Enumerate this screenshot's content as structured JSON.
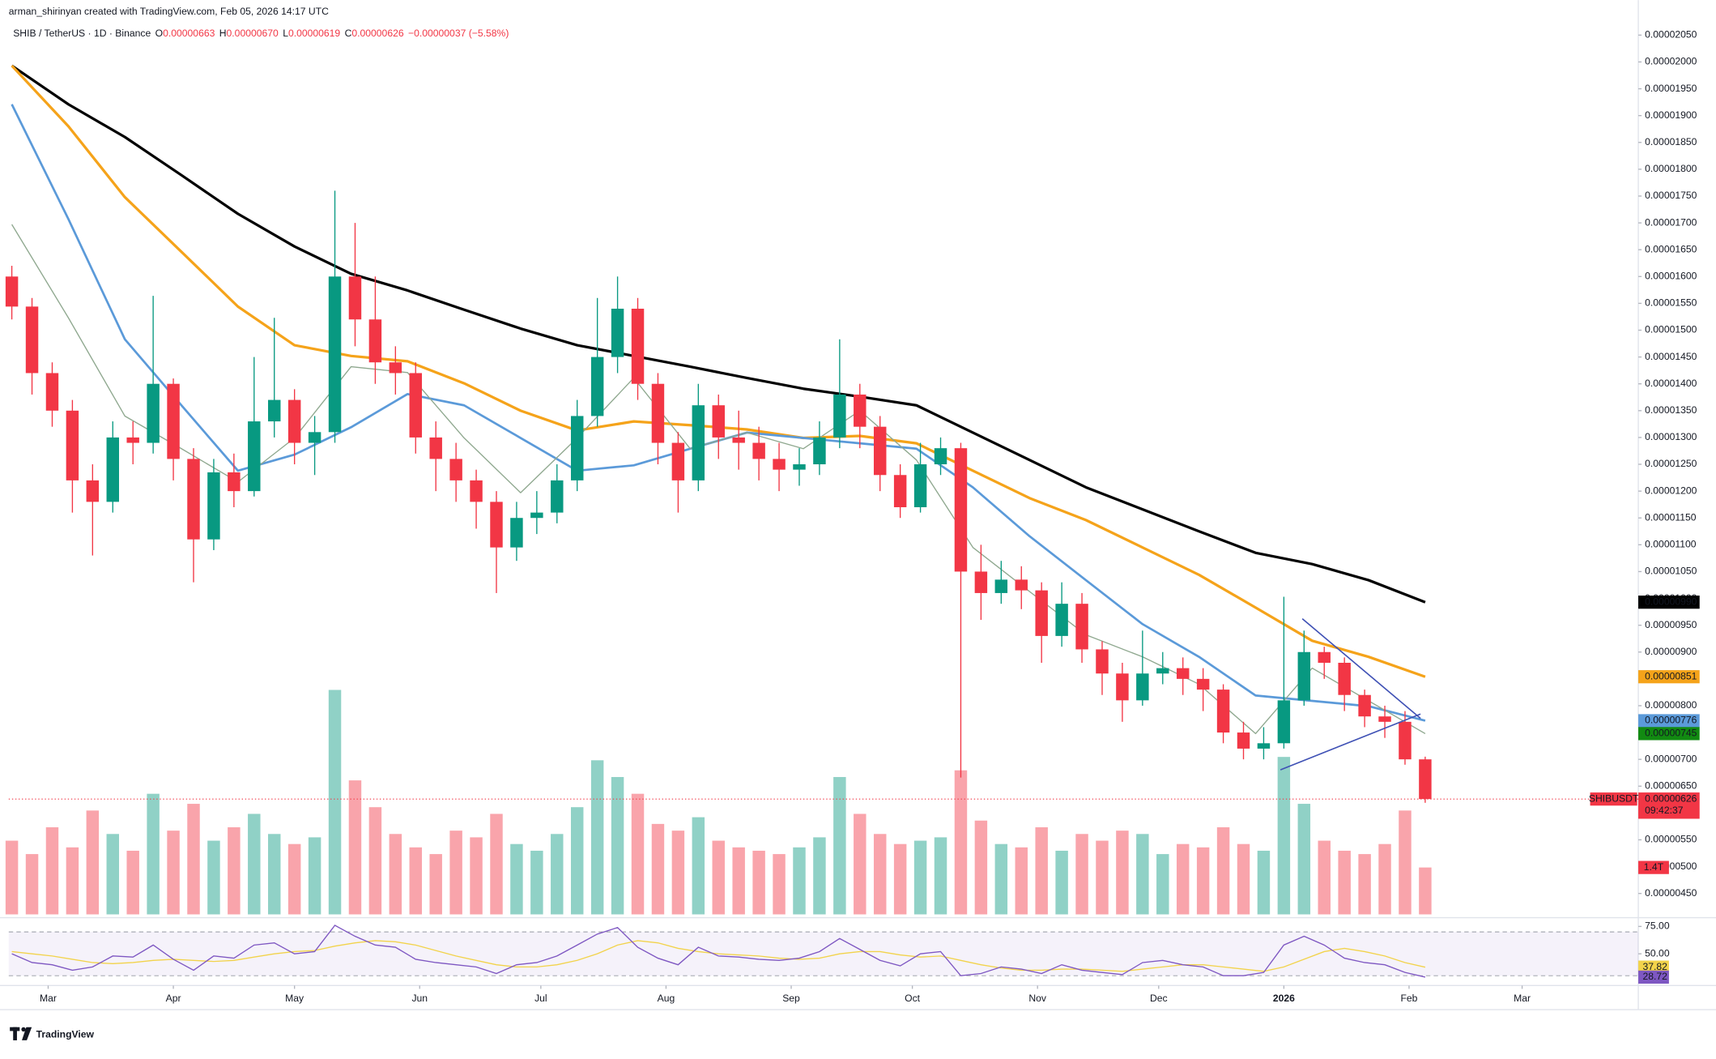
{
  "header": {
    "author": "arman_shirinyan created with TradingView.com, Feb 05, 2026 14:17 UTC",
    "symbol": "SHIB / TetherUS · 1D · Binance",
    "ohlc": [
      {
        "key": "O",
        "value": "0.00000663"
      },
      {
        "key": "H",
        "value": "0.00000670"
      },
      {
        "key": "L",
        "value": "0.00000619"
      },
      {
        "key": "C",
        "value": "0.00000626"
      }
    ],
    "change": "−0.00000037 (−5.58%)"
  },
  "chart_data": {
    "type": "candlestick",
    "x": [
      -9,
      -4,
      1,
      6,
      11,
      16,
      21,
      26,
      31,
      36,
      41,
      46,
      51,
      56,
      61,
      66,
      71,
      76,
      81,
      86,
      91,
      96,
      101,
      106,
      111,
      116,
      121,
      126,
      131,
      136,
      141,
      146,
      151,
      156,
      161,
      166,
      171,
      176,
      181,
      186,
      191,
      196,
      201,
      206,
      211,
      216,
      221,
      226,
      231,
      236,
      241,
      246,
      251,
      256,
      261,
      266,
      271,
      276,
      281,
      286,
      291,
      296,
      301,
      306,
      311,
      316,
      321,
      326,
      331,
      336,
      341
    ],
    "open": [
      1.6e-05,
      1.544e-05,
      1.42e-05,
      1.35e-05,
      1.22e-05,
      1.18e-05,
      1.3e-05,
      1.29e-05,
      1.4e-05,
      1.26e-05,
      1.11e-05,
      1.235e-05,
      1.2e-05,
      1.33e-05,
      1.37e-05,
      1.29e-05,
      1.31e-05,
      1.6e-05,
      1.52e-05,
      1.44e-05,
      1.42e-05,
      1.3e-05,
      1.26e-05,
      1.22e-05,
      1.18e-05,
      1.095e-05,
      1.15e-05,
      1.16e-05,
      1.22e-05,
      1.34e-05,
      1.45e-05,
      1.54e-05,
      1.4e-05,
      1.29e-05,
      1.22e-05,
      1.36e-05,
      1.3e-05,
      1.29e-05,
      1.26e-05,
      1.24e-05,
      1.25e-05,
      1.3e-05,
      1.38e-05,
      1.32e-05,
      1.23e-05,
      1.17e-05,
      1.25e-05,
      1.28e-05,
      1.05e-05,
      1.01e-05,
      1.035e-05,
      1.015e-05,
      9.3e-06,
      9.9e-06,
      9.05e-06,
      8.6e-06,
      8.1e-06,
      8.6e-06,
      8.7e-06,
      8.5e-06,
      8.3e-06,
      7.5e-06,
      7.2e-06,
      7.3e-06,
      8.1e-06,
      9e-06,
      8.8e-06,
      8.2e-06,
      7.8e-06,
      7.7e-06,
      7e-06
    ],
    "high": [
      1.62e-05,
      1.56e-05,
      1.44e-05,
      1.37e-05,
      1.25e-05,
      1.33e-05,
      1.33e-05,
      1.564e-05,
      1.41e-05,
      1.28e-05,
      1.26e-05,
      1.27e-05,
      1.45e-05,
      1.523e-05,
      1.39e-05,
      1.34e-05,
      1.76e-05,
      1.7e-05,
      1.6e-05,
      1.47e-05,
      1.44e-05,
      1.33e-05,
      1.29e-05,
      1.24e-05,
      1.2e-05,
      1.18e-05,
      1.2e-05,
      1.25e-05,
      1.37e-05,
      1.56e-05,
      1.6e-05,
      1.56e-05,
      1.42e-05,
      1.31e-05,
      1.4e-05,
      1.38e-05,
      1.35e-05,
      1.32e-05,
      1.29e-05,
      1.28e-05,
      1.33e-05,
      1.483e-05,
      1.4e-05,
      1.34e-05,
      1.25e-05,
      1.29e-05,
      1.3e-05,
      1.29e-05,
      1.1e-05,
      1.07e-05,
      1.06e-05,
      1.03e-05,
      1.03e-05,
      1.01e-05,
      9.2e-06,
      8.8e-06,
      9.4e-06,
      9e-06,
      8.9e-06,
      8.7e-06,
      8.4e-06,
      7.7e-06,
      7.6e-06,
      1.003e-05,
      9.4e-06,
      9.1e-06,
      8.9e-06,
      8.3e-06,
      8e-06,
      7.9e-06,
      7.05e-06
    ],
    "low": [
      1.52e-05,
      1.38e-05,
      1.32e-05,
      1.16e-05,
      1.08e-05,
      1.16e-05,
      1.25e-05,
      1.27e-05,
      1.22e-05,
      1.03e-05,
      1.09e-05,
      1.17e-05,
      1.19e-05,
      1.3e-05,
      1.25e-05,
      1.23e-05,
      1.29e-05,
      1.47e-05,
      1.4e-05,
      1.38e-05,
      1.27e-05,
      1.2e-05,
      1.18e-05,
      1.13e-05,
      1.01e-05,
      1.07e-05,
      1.12e-05,
      1.14e-05,
      1.2e-05,
      1.32e-05,
      1.42e-05,
      1.37e-05,
      1.25e-05,
      1.16e-05,
      1.2e-05,
      1.26e-05,
      1.24e-05,
      1.22e-05,
      1.2e-05,
      1.21e-05,
      1.23e-05,
      1.28e-05,
      1.28e-05,
      1.2e-05,
      1.15e-05,
      1.16e-05,
      1.23e-05,
      6.66e-06,
      9.6e-06,
      9.9e-06,
      9.8e-06,
      8.8e-06,
      9.1e-06,
      8.8e-06,
      8.2e-06,
      7.7e-06,
      8e-06,
      8.4e-06,
      8.2e-06,
      7.9e-06,
      7.3e-06,
      7e-06,
      7e-06,
      7.2e-06,
      8e-06,
      8.5e-06,
      7.9e-06,
      7.6e-06,
      7.4e-06,
      6.9e-06,
      6.19e-06
    ],
    "close": [
      1.544e-05,
      1.42e-05,
      1.35e-05,
      1.22e-05,
      1.18e-05,
      1.3e-05,
      1.29e-05,
      1.4e-05,
      1.26e-05,
      1.11e-05,
      1.235e-05,
      1.2e-05,
      1.33e-05,
      1.37e-05,
      1.29e-05,
      1.31e-05,
      1.6e-05,
      1.52e-05,
      1.44e-05,
      1.42e-05,
      1.3e-05,
      1.26e-05,
      1.22e-05,
      1.18e-05,
      1.095e-05,
      1.15e-05,
      1.16e-05,
      1.22e-05,
      1.34e-05,
      1.45e-05,
      1.54e-05,
      1.4e-05,
      1.29e-05,
      1.22e-05,
      1.36e-05,
      1.3e-05,
      1.29e-05,
      1.26e-05,
      1.24e-05,
      1.25e-05,
      1.3e-05,
      1.38e-05,
      1.32e-05,
      1.23e-05,
      1.17e-05,
      1.25e-05,
      1.28e-05,
      1.05e-05,
      1.01e-05,
      1.035e-05,
      1.015e-05,
      9.3e-06,
      9.9e-06,
      9.05e-06,
      8.6e-06,
      8.1e-06,
      8.6e-06,
      8.7e-06,
      8.5e-06,
      8.3e-06,
      7.5e-06,
      7.2e-06,
      7.3e-06,
      8.1e-06,
      9e-06,
      8.8e-06,
      8.2e-06,
      7.8e-06,
      7.7e-06,
      7e-06,
      6.26e-06
    ],
    "colors": {
      "up": "#089981",
      "down": "#f23645"
    },
    "xlim": [
      -9.76,
      393.77
    ],
    "xticks": [
      {
        "value": 0,
        "label": "Mar"
      },
      {
        "value": 31,
        "label": "Apr"
      },
      {
        "value": 61,
        "label": "May"
      },
      {
        "value": 92,
        "label": "Jun"
      },
      {
        "value": 122,
        "label": "Jul"
      },
      {
        "value": 153,
        "label": "Aug"
      },
      {
        "value": 184,
        "label": "Sep"
      },
      {
        "value": 214,
        "label": "Oct"
      },
      {
        "value": 245,
        "label": "Nov"
      },
      {
        "value": 275,
        "label": "Dec"
      },
      {
        "value": 306,
        "label": "2026",
        "bold": true
      },
      {
        "value": 337,
        "label": "Feb"
      },
      {
        "value": 365,
        "label": "Mar"
      }
    ],
    "ylim": [
      4.11e-06,
      2.0745e-05
    ],
    "yticks": [
      {
        "value": 2.05e-05,
        "label": "0.00002050"
      },
      {
        "value": 2e-05,
        "label": "0.00002000"
      },
      {
        "value": 1.95e-05,
        "label": "0.00001950"
      },
      {
        "value": 1.9e-05,
        "label": "0.00001900"
      },
      {
        "value": 1.85e-05,
        "label": "0.00001850"
      },
      {
        "value": 1.8e-05,
        "label": "0.00001800"
      },
      {
        "value": 1.75e-05,
        "label": "0.00001750"
      },
      {
        "value": 1.7e-05,
        "label": "0.00001700"
      },
      {
        "value": 1.65e-05,
        "label": "0.00001650"
      },
      {
        "value": 1.6e-05,
        "label": "0.00001600"
      },
      {
        "value": 1.55e-05,
        "label": "0.00001550"
      },
      {
        "value": 1.5e-05,
        "label": "0.00001500"
      },
      {
        "value": 1.45e-05,
        "label": "0.00001450"
      },
      {
        "value": 1.4e-05,
        "label": "0.00001400"
      },
      {
        "value": 1.35e-05,
        "label": "0.00001350"
      },
      {
        "value": 1.3e-05,
        "label": "0.00001300"
      },
      {
        "value": 1.25e-05,
        "label": "0.00001250"
      },
      {
        "value": 1.2e-05,
        "label": "0.00001200"
      },
      {
        "value": 1.15e-05,
        "label": "0.00001150"
      },
      {
        "value": 1.1e-05,
        "label": "0.00001100"
      },
      {
        "value": 1.05e-05,
        "label": "0.00001050"
      },
      {
        "value": 1e-05,
        "label": "0.00001000"
      },
      {
        "value": 9.5e-06,
        "label": "0.00000950"
      },
      {
        "value": 9e-06,
        "label": "0.00000900"
      },
      {
        "value": 8.5e-06,
        "label": "0.00000850"
      },
      {
        "value": 8e-06,
        "label": "0.00000800"
      },
      {
        "value": 7.5e-06,
        "label": "0.00000750"
      },
      {
        "value": 7e-06,
        "label": "0.00000700"
      },
      {
        "value": 6.5e-06,
        "label": "0.00000650"
      },
      {
        "value": 6e-06,
        "label": "0.00000600"
      },
      {
        "value": 5.5e-06,
        "label": "0.00000550"
      },
      {
        "value": 5e-06,
        "label": "0.00000500"
      },
      {
        "value": 4.5e-06,
        "label": "0.00000450"
      }
    ],
    "last_price": {
      "symbol": "SHIBUSDT",
      "label": "0.00000626",
      "countdown": "09:42:37"
    },
    "moving_averages": {
      "x": [
        -9,
        5,
        19,
        33,
        47,
        61,
        75,
        89,
        103,
        117,
        131,
        145,
        159,
        173,
        187,
        201,
        215,
        229,
        243,
        257,
        271,
        285,
        299,
        313,
        327,
        341
      ],
      "series": [
        {
          "color": "#000000",
          "label_color": "#000000",
          "label_text_color": "#ffffff",
          "width": 2.4,
          "last_label": "0.00000990",
          "values": [
            1.993e-05,
            1.921e-05,
            1.86e-05,
            1.789e-05,
            1.717e-05,
            1.656e-05,
            1.605e-05,
            1.574e-05,
            1.538e-05,
            1.503e-05,
            1.472e-05,
            1.452e-05,
            1.432e-05,
            1.411e-05,
            1.391e-05,
            1.376e-05,
            1.36e-05,
            1.309e-05,
            1.258e-05,
            1.207e-05,
            1.166e-05,
            1.125e-05,
            1.085e-05,
            1.064e-05,
            1.034e-05,
            9.93e-06
          ]
        },
        {
          "color": "#f5a31a",
          "label_color": "#f5a31a",
          "label_text_color": "#131722",
          "width": 2.4,
          "last_label": "0.00000851",
          "values": [
            1.993e-05,
            1.88e-05,
            1.748e-05,
            1.646e-05,
            1.544e-05,
            1.472e-05,
            1.452e-05,
            1.442e-05,
            1.401e-05,
            1.35e-05,
            1.313e-05,
            1.33e-05,
            1.323e-05,
            1.315e-05,
            1.299e-05,
            1.303e-05,
            1.289e-05,
            1.238e-05,
            1.187e-05,
            1.146e-05,
            1.095e-05,
            1.044e-05,
            9.83e-06,
            9.21e-06,
            8.91e-06,
            8.54e-06
          ]
        },
        {
          "color": "#5b9ad9",
          "label_color": "#5b9ad9",
          "label_text_color": "#ffffff",
          "width": 2,
          "last_label": "0.00000776",
          "values": [
            1.921e-05,
            1.707e-05,
            1.483e-05,
            1.36e-05,
            1.238e-05,
            1.268e-05,
            1.319e-05,
            1.381e-05,
            1.36e-05,
            1.299e-05,
            1.238e-05,
            1.248e-05,
            1.279e-05,
            1.309e-05,
            1.299e-05,
            1.289e-05,
            1.279e-05,
            1.207e-05,
            1.116e-05,
            1.034e-05,
            9.52e-06,
            8.91e-06,
            8.19e-06,
            8.09e-06,
            7.99e-06,
            7.72e-06
          ]
        },
        {
          "color": "#8fa88f",
          "label_color": "#118a11",
          "label_text_color": "#ffffff",
          "width": 1,
          "last_label": "0.00000745",
          "values": [
            1.697e-05,
            1.523e-05,
            1.34e-05,
            1.279e-05,
            1.217e-05,
            1.299e-05,
            1.432e-05,
            1.421e-05,
            1.299e-05,
            1.197e-05,
            1.299e-05,
            1.411e-05,
            1.279e-05,
            1.309e-05,
            1.279e-05,
            1.35e-05,
            1.258e-05,
            1.095e-05,
            1.013e-05,
            9.32e-06,
            8.91e-06,
            8.4e-06,
            7.48e-06,
            8.7e-06,
            8.09e-06,
            7.48e-06
          ]
        }
      ]
    },
    "volume": {
      "values": [
        2.2,
        1.8,
        2.6,
        2.0,
        3.1,
        2.4,
        1.9,
        3.6,
        2.5,
        3.3,
        2.2,
        2.6,
        3.0,
        2.4,
        2.1,
        2.3,
        6.7,
        4.0,
        3.2,
        2.4,
        2.0,
        1.8,
        2.5,
        2.3,
        3.0,
        2.1,
        1.9,
        2.4,
        3.2,
        4.6,
        4.1,
        3.6,
        2.7,
        2.5,
        2.9,
        2.2,
        2.0,
        1.9,
        1.8,
        2.0,
        2.3,
        4.1,
        3.0,
        2.4,
        2.1,
        2.2,
        2.3,
        4.3,
        2.8,
        2.1,
        2.0,
        2.6,
        1.9,
        2.4,
        2.2,
        2.5,
        2.4,
        1.8,
        2.1,
        2.0,
        2.6,
        2.1,
        1.9,
        4.7,
        3.3,
        2.2,
        1.9,
        1.8,
        2.1,
        3.1,
        1.4
      ],
      "last_label": "1.4T"
    },
    "rsi": {
      "color": "#7e57c2",
      "ma_color": "#f2d34b",
      "ylim": [
        23,
        81
      ],
      "yticks": [
        {
          "value": 75,
          "label": "75.00"
        },
        {
          "value": 50,
          "label": "50.00"
        }
      ],
      "bands": [
        30,
        70
      ],
      "values": [
        50,
        42,
        40,
        35,
        38,
        48,
        47,
        58,
        45,
        35,
        48,
        46,
        58,
        60,
        50,
        52,
        76,
        66,
        58,
        56,
        45,
        42,
        40,
        38,
        32,
        40,
        42,
        48,
        58,
        68,
        74,
        56,
        46,
        40,
        56,
        48,
        47,
        45,
        44,
        46,
        52,
        64,
        54,
        44,
        39,
        50,
        52,
        30,
        32,
        38,
        36,
        32,
        40,
        35,
        33,
        31,
        42,
        44,
        40,
        38,
        30,
        30,
        33,
        58,
        66,
        58,
        46,
        42,
        40,
        33,
        28.72
      ],
      "ma_values": [
        52,
        50,
        48,
        45,
        42,
        41,
        42,
        44,
        45,
        44,
        43,
        44,
        47,
        50,
        52,
        53,
        57,
        60,
        62,
        61,
        58,
        53,
        48,
        44,
        40,
        38,
        38,
        40,
        44,
        50,
        58,
        62,
        60,
        55,
        52,
        50,
        49,
        48,
        46,
        45,
        46,
        50,
        52,
        52,
        49,
        47,
        48,
        44,
        40,
        37,
        35,
        35,
        36,
        36,
        35,
        34,
        36,
        38,
        40,
        40,
        38,
        36,
        34,
        38,
        45,
        52,
        55,
        52,
        48,
        42,
        37.82
      ],
      "last_label": "28.72",
      "ma_last_label": "37.82"
    }
  },
  "footer": {
    "logo": "TradingView"
  }
}
